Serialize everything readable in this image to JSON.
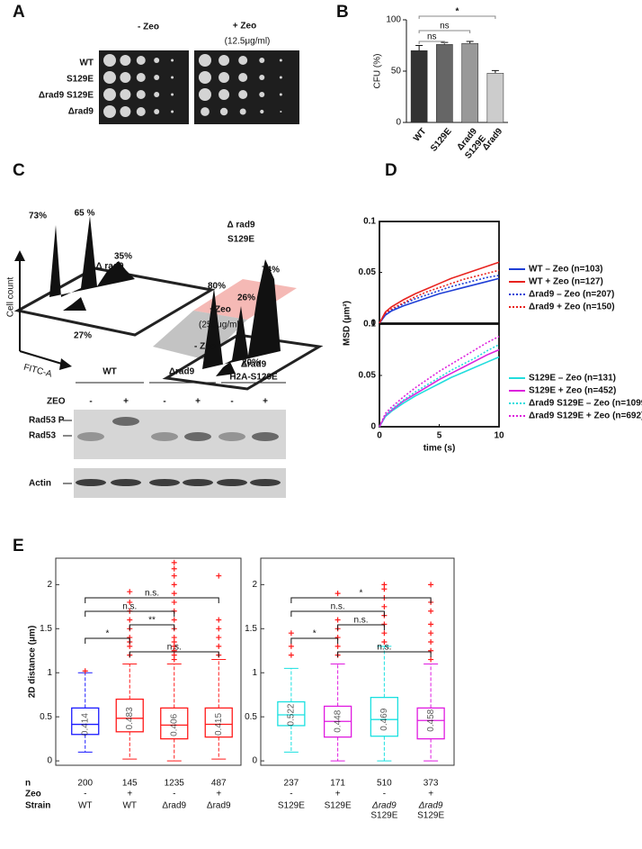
{
  "panels": {
    "labels": [
      "A",
      "B",
      "C",
      "D",
      "E"
    ],
    "A": {
      "columns": [
        "- Zeo",
        "+ Zeo"
      ],
      "concentration": "(12.5μg/ml)",
      "strains": [
        "WT",
        "S129E",
        "Δrad9 S129E",
        "Δrad9"
      ]
    },
    "C": {
      "percentages_left": [
        "73%",
        "65 %",
        "35%",
        "27%"
      ],
      "strain_left": "Δ rad9",
      "percentages_right": [
        "80%",
        "26%",
        "74%",
        "20%"
      ],
      "strain_right": [
        "Δ rad9",
        "S129E"
      ],
      "plus": "+Zeo",
      "dose": "(250μg/ml)",
      "minus": "- Zeo",
      "y_axis": "Cell count",
      "x_axis": "FITC-A"
    },
    "blot": {
      "strains": [
        [
          "WT"
        ],
        [
          "Δrad9"
        ],
        [
          "Δrad9",
          "H2A-S129E"
        ]
      ],
      "treatment_label": "ZEO",
      "treatments": [
        "-",
        "+",
        "-",
        "+",
        "-",
        "+"
      ],
      "bands": [
        "Rad53 P",
        "Rad53",
        "Actin"
      ]
    },
    "E": {
      "row_labels": [
        "n",
        "Zeo",
        "Strain"
      ]
    }
  },
  "chart_data": [
    {
      "type": "bar",
      "ylabel": "CFU (%)",
      "categories": [
        [
          "WT"
        ],
        [
          "S129E"
        ],
        [
          "Δrad9",
          "S129E"
        ],
        [
          "Δrad9"
        ]
      ],
      "values": [
        70,
        76,
        77,
        48
      ],
      "errors": [
        5,
        2,
        2,
        2.5
      ],
      "colors": [
        "#333333",
        "#666666",
        "#999999",
        "#cccccc"
      ],
      "ylim": [
        0,
        100
      ],
      "yticks": [
        0,
        50,
        100
      ],
      "annotations": [
        "ns",
        "ns",
        "*"
      ]
    },
    {
      "type": "line",
      "ylabel": "MSD (μm²)",
      "x": [
        0,
        0.5,
        1,
        2,
        3,
        4,
        5,
        6,
        7,
        8,
        9,
        10
      ],
      "xlim": [
        0,
        10
      ],
      "ylim": [
        0,
        0.1
      ],
      "yticks": [
        0,
        0.05,
        0.1
      ],
      "series": [
        {
          "name": "WT – Zeo (n=103)",
          "color": "#1f3fd6",
          "linestyle": "solid",
          "values": [
            0,
            0.008,
            0.012,
            0.017,
            0.021,
            0.025,
            0.029,
            0.032,
            0.035,
            0.038,
            0.041,
            0.044
          ]
        },
        {
          "name": "WT + Zeo (n=127)",
          "color": "#e8231f",
          "linestyle": "solid",
          "values": [
            0,
            0.011,
            0.016,
            0.023,
            0.029,
            0.034,
            0.039,
            0.044,
            0.048,
            0.052,
            0.056,
            0.06
          ]
        },
        {
          "name": "Δrad9 – Zeo (n=207)",
          "color": "#1f3fd6",
          "linestyle": "dotted",
          "values": [
            0,
            0.009,
            0.013,
            0.019,
            0.024,
            0.028,
            0.032,
            0.036,
            0.039,
            0.042,
            0.045,
            0.047
          ]
        },
        {
          "name": "Δrad9 + Zeo (n=150)",
          "color": "#e8231f",
          "linestyle": "dotted",
          "values": [
            0,
            0.01,
            0.014,
            0.02,
            0.026,
            0.031,
            0.035,
            0.039,
            0.043,
            0.046,
            0.049,
            0.052
          ]
        }
      ]
    },
    {
      "type": "line",
      "xlabel": "time (s)",
      "x": [
        0,
        0.5,
        1,
        2,
        3,
        4,
        5,
        6,
        7,
        8,
        9,
        10
      ],
      "xlim": [
        0,
        10
      ],
      "xticks": [
        0,
        5,
        10
      ],
      "ylim": [
        0,
        0.1
      ],
      "yticks": [
        0,
        0.05,
        0.1
      ],
      "series": [
        {
          "name": "S129E – Zeo (n=131)",
          "color": "#22dddd",
          "linestyle": "solid",
          "values": [
            0,
            0.01,
            0.015,
            0.023,
            0.03,
            0.036,
            0.042,
            0.048,
            0.053,
            0.058,
            0.063,
            0.068
          ]
        },
        {
          "name": "S129E + Zeo (n=452)",
          "color": "#dd22dd",
          "linestyle": "solid",
          "values": [
            0,
            0.011,
            0.016,
            0.025,
            0.032,
            0.039,
            0.046,
            0.052,
            0.058,
            0.064,
            0.07,
            0.075
          ]
        },
        {
          "name": "Δrad9 S129E – Zeo (n=1099)",
          "color": "#22dddd",
          "linestyle": "dotted",
          "values": [
            0,
            0.011,
            0.017,
            0.026,
            0.034,
            0.041,
            0.048,
            0.055,
            0.061,
            0.067,
            0.074,
            0.08
          ]
        },
        {
          "name": "Δrad9 S129E + Zeo  (n=692)",
          "color": "#dd22dd",
          "linestyle": "dotted",
          "values": [
            0,
            0.013,
            0.019,
            0.029,
            0.038,
            0.046,
            0.054,
            0.061,
            0.068,
            0.075,
            0.082,
            0.088
          ]
        }
      ]
    },
    {
      "type": "box",
      "ylabel": "2D distance (μm)",
      "ylim": [
        -0.05,
        2.3
      ],
      "yticks": [
        0,
        0.5,
        1,
        1.5,
        2
      ],
      "outlier_color": "#ff1a1a",
      "boxes": [
        {
          "color": "#1a1aff",
          "low": 0.1,
          "q1": 0.3,
          "median": 0.414,
          "q3": 0.6,
          "high": 1.0,
          "outliers": [
            1.02
          ]
        },
        {
          "color": "#ff1a1a",
          "low": 0.02,
          "q1": 0.33,
          "median": 0.483,
          "q3": 0.7,
          "high": 1.1,
          "outliers": [
            1.2,
            1.3,
            1.35,
            1.4,
            1.5,
            1.6,
            1.7,
            1.8,
            1.92
          ]
        },
        {
          "color": "#ff1a1a",
          "low": 0,
          "q1": 0.25,
          "median": 0.406,
          "q3": 0.6,
          "high": 1.1,
          "outliers": [
            1.15,
            1.2,
            1.25,
            1.3,
            1.35,
            1.4,
            1.5,
            1.6,
            1.7,
            1.8,
            1.9,
            2.0,
            2.1,
            2.18,
            2.25
          ]
        },
        {
          "color": "#ff1a1a",
          "low": 0.02,
          "q1": 0.27,
          "median": 0.415,
          "q3": 0.6,
          "high": 1.15,
          "outliers": [
            1.2,
            1.3,
            1.4,
            1.5,
            1.6,
            2.1
          ]
        }
      ],
      "annotations": [
        "n.s.",
        "n.s.",
        "**",
        "*",
        "n.s."
      ],
      "n": [
        200,
        145,
        1235,
        487
      ],
      "zeo": [
        "-",
        "+",
        "-",
        "+"
      ],
      "strain": [
        [
          "WT"
        ],
        [
          "WT"
        ],
        [
          "Δrad9"
        ],
        [
          "Δrad9"
        ]
      ]
    },
    {
      "type": "box",
      "ylim": [
        -0.05,
        2.3
      ],
      "yticks": [
        0,
        0.5,
        1,
        1.5,
        2
      ],
      "outlier_color": "#ff1a1a",
      "boxes": [
        {
          "color": "#1ae0e0",
          "low": 0.1,
          "q1": 0.4,
          "median": 0.522,
          "q3": 0.67,
          "high": 1.05,
          "outliers": [
            1.2,
            1.3,
            1.45
          ]
        },
        {
          "color": "#e01ae0",
          "low": 0,
          "q1": 0.27,
          "median": 0.448,
          "q3": 0.62,
          "high": 1.1,
          "outliers": [
            1.2,
            1.3,
            1.4,
            1.5,
            1.6,
            1.9
          ]
        },
        {
          "color": "#1ae0e0",
          "low": 0,
          "q1": 0.28,
          "median": 0.469,
          "q3": 0.72,
          "high": 1.3,
          "outliers": [
            1.35,
            1.45,
            1.55,
            1.65,
            1.75,
            1.85,
            1.95,
            2.0
          ]
        },
        {
          "color": "#e01ae0",
          "low": 0,
          "q1": 0.25,
          "median": 0.458,
          "q3": 0.6,
          "high": 1.1,
          "outliers": [
            1.15,
            1.25,
            1.35,
            1.45,
            1.55,
            1.7,
            1.8,
            2.0
          ]
        }
      ],
      "annotations": [
        "*",
        "n.s.",
        "n.s.",
        "*",
        "n.s."
      ],
      "n": [
        237,
        171,
        510,
        373
      ],
      "zeo": [
        "-",
        "+",
        "-",
        "+"
      ],
      "strain": [
        [
          "S129E"
        ],
        [
          "S129E"
        ],
        [
          "Δrad9",
          "S129E"
        ],
        [
          "Δrad9",
          "S129E"
        ]
      ]
    }
  ]
}
